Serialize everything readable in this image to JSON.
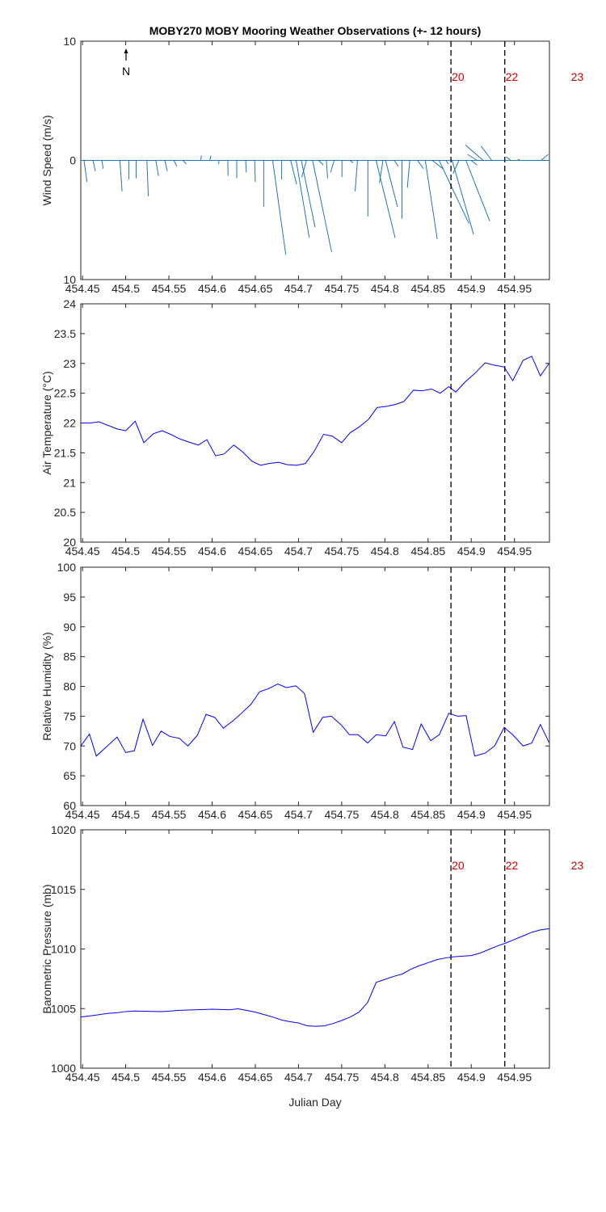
{
  "title": "MOBY270 MOBY Mooring Weather Observations (+- 12 hours)",
  "xlabel": "Julian Day",
  "north_label": "N",
  "colors": {
    "series": "#0000ff",
    "wind": "#1f77b4",
    "marker": "#000000",
    "marker_label": "#cc0000",
    "axis": "#262626"
  },
  "x_ticks": [
    454.45,
    454.5,
    454.55,
    454.6,
    454.65,
    454.7,
    454.75,
    454.8,
    454.85,
    454.9,
    454.95
  ],
  "x_tick_labels": [
    "454.45",
    "454.5",
    "454.55",
    "454.6",
    "454.65",
    "454.7",
    "454.75",
    "454.8",
    "454.85",
    "454.9",
    "454.95"
  ],
  "xlim": [
    454.448,
    454.9905
  ],
  "markers": [
    {
      "x": 454.8765,
      "label": "20"
    },
    {
      "x": 454.9388,
      "label": "22"
    },
    {
      "x": 455.0145,
      "label": "23"
    }
  ],
  "chart_data": [
    {
      "type": "quiver",
      "ylabel": "Wind Speed (m/s)",
      "ylim": [
        -10,
        10
      ],
      "y_tick_labels": [
        "10",
        "0",
        "10"
      ],
      "y_tick_values": [
        10,
        0,
        -10
      ],
      "show_markers": true,
      "vectors": [
        {
          "x": 454.4517,
          "u": 0.25,
          "v": -1.8
        },
        {
          "x": 454.4621,
          "u": 0.2,
          "v": -0.9
        },
        {
          "x": 454.4725,
          "u": 0.1,
          "v": -0.7
        },
        {
          "x": 454.4829,
          "u": 0.05,
          "v": 0.0
        },
        {
          "x": 454.4933,
          "u": 0.18,
          "v": -2.6
        },
        {
          "x": 454.5037,
          "u": 0.0,
          "v": -1.6
        },
        {
          "x": 454.5121,
          "u": 0.0,
          "v": -1.5
        },
        {
          "x": 454.5245,
          "u": 0.12,
          "v": -3.0
        },
        {
          "x": 454.5349,
          "u": 0.22,
          "v": -1.3
        },
        {
          "x": 454.5453,
          "u": 0.2,
          "v": -0.9
        },
        {
          "x": 454.5557,
          "u": 0.25,
          "v": -0.5
        },
        {
          "x": 454.5661,
          "u": 0.3,
          "v": -0.3
        },
        {
          "x": 454.5765,
          "u": 0.05,
          "v": 0.0
        },
        {
          "x": 454.5869,
          "u": 0.05,
          "v": 0.4
        },
        {
          "x": 454.5973,
          "u": 0.1,
          "v": 0.4
        },
        {
          "x": 454.6077,
          "u": 0.0,
          "v": -0.3
        },
        {
          "x": 454.6181,
          "u": 0.03,
          "v": -1.3
        },
        {
          "x": 454.6285,
          "u": 0.0,
          "v": -1.5
        },
        {
          "x": 454.6389,
          "u": 0.05,
          "v": -1.0
        },
        {
          "x": 454.6493,
          "u": 0.05,
          "v": -1.8
        },
        {
          "x": 454.6597,
          "u": 0.0,
          "v": -3.9
        },
        {
          "x": 454.6701,
          "u": 1.1,
          "v": -7.9
        },
        {
          "x": 454.6805,
          "u": 0.0,
          "v": -1.6
        },
        {
          "x": 454.6909,
          "u": 0.5,
          "v": -2.0
        },
        {
          "x": 454.6973,
          "u": 1.1,
          "v": -6.5
        },
        {
          "x": 454.7033,
          "u": 1.15,
          "v": -5.6
        },
        {
          "x": 454.7093,
          "u": -0.4,
          "v": -1.4
        },
        {
          "x": 454.7163,
          "u": 1.6,
          "v": -7.7
        },
        {
          "x": 454.7233,
          "u": 0.4,
          "v": -0.4
        },
        {
          "x": 454.7323,
          "u": 0.1,
          "v": -1.5
        },
        {
          "x": 454.7413,
          "u": -0.3,
          "v": -1.0
        },
        {
          "x": 454.7503,
          "u": 0.0,
          "v": -1.4
        },
        {
          "x": 454.7593,
          "u": 0.3,
          "v": -0.2
        },
        {
          "x": 454.7683,
          "u": -0.2,
          "v": -2.6
        },
        {
          "x": 454.7803,
          "u": 0.0,
          "v": -4.7
        },
        {
          "x": 454.7898,
          "u": 1.6,
          "v": -6.5
        },
        {
          "x": 454.7978,
          "u": -0.3,
          "v": -1.9
        },
        {
          "x": 454.8008,
          "u": 1.0,
          "v": -3.9
        },
        {
          "x": 454.8108,
          "u": 0.35,
          "v": -0.5
        },
        {
          "x": 454.8198,
          "u": 0.0,
          "v": -4.9
        },
        {
          "x": 454.8288,
          "u": -0.2,
          "v": -2.3
        },
        {
          "x": 454.8378,
          "u": 0.5,
          "v": -0.7
        },
        {
          "x": 454.8468,
          "u": 1.0,
          "v": -6.6
        },
        {
          "x": 454.8548,
          "u": 0.9,
          "v": -0.7
        },
        {
          "x": 454.8628,
          "u": 2.5,
          "v": -5.3
        },
        {
          "x": 454.8708,
          "u": 0.2,
          "v": -0.3
        },
        {
          "x": 454.8778,
          "u": 1.8,
          "v": -6.2
        },
        {
          "x": 454.8858,
          "u": -0.5,
          "v": -1.1
        },
        {
          "x": 454.8938,
          "u": 2.0,
          "v": -5.1
        },
        {
          "x": 454.8998,
          "u": 0.5,
          "v": -0.4
        },
        {
          "x": 454.9068,
          "u": -0.8,
          "v": 0.5
        },
        {
          "x": 454.9138,
          "u": -1.5,
          "v": 1.3
        },
        {
          "x": 454.9238,
          "u": -0.9,
          "v": 1.2
        },
        {
          "x": 454.9368,
          "u": 0.2,
          "v": 0.0
        },
        {
          "x": 454.9458,
          "u": -0.4,
          "v": 0.3
        },
        {
          "x": 454.9568,
          "u": -0.2,
          "v": 0.1
        },
        {
          "x": 454.9688,
          "u": 0.05,
          "v": 0.0
        },
        {
          "x": 454.9808,
          "u": 0.6,
          "v": 0.5
        }
      ]
    },
    {
      "type": "line",
      "ylabel": "Air Temperature (°C)",
      "ylim": [
        20,
        24
      ],
      "y_tick_values": [
        20,
        20.5,
        21,
        21.5,
        22,
        22.5,
        23,
        23.5,
        24
      ],
      "y_tick_labels": [
        "20",
        "20.5",
        "21",
        "21.5",
        "22",
        "22.5",
        "23",
        "23.5",
        "24"
      ],
      "show_markers": false,
      "x": [
        454.448,
        454.459,
        454.469,
        454.49,
        454.5,
        454.511,
        454.521,
        454.532,
        454.542,
        454.552,
        454.563,
        454.573,
        454.584,
        454.594,
        454.604,
        454.614,
        454.625,
        454.635,
        454.646,
        454.656,
        454.666,
        454.677,
        454.687,
        454.698,
        454.708,
        454.718,
        454.729,
        454.739,
        454.75,
        454.76,
        454.77,
        454.781,
        454.791,
        454.802,
        454.812,
        454.822,
        454.833,
        454.843,
        454.854,
        454.864,
        454.874,
        454.882,
        454.893,
        454.904,
        454.916,
        454.927,
        454.938,
        454.948,
        454.96,
        454.97,
        454.98,
        454.99
      ],
      "y": [
        22.0,
        22.0,
        22.02,
        21.9,
        21.87,
        22.03,
        21.67,
        21.82,
        21.87,
        21.81,
        21.73,
        21.68,
        21.63,
        21.72,
        21.45,
        21.48,
        21.63,
        21.52,
        21.36,
        21.29,
        21.32,
        21.34,
        21.3,
        21.29,
        21.32,
        21.52,
        21.81,
        21.78,
        21.67,
        21.84,
        21.93,
        22.06,
        22.26,
        22.28,
        22.31,
        22.36,
        22.55,
        22.54,
        22.57,
        22.5,
        22.61,
        22.52,
        22.69,
        22.83,
        23.01,
        22.97,
        22.94,
        22.71,
        23.05,
        23.12,
        22.79,
        23.0
      ]
    },
    {
      "type": "line",
      "ylabel": "Relative Humidity (%)",
      "ylim": [
        60,
        100
      ],
      "y_tick_values": [
        60,
        65,
        70,
        75,
        80,
        85,
        90,
        95,
        100
      ],
      "y_tick_labels": [
        "60",
        "65",
        "70",
        "75",
        "80",
        "85",
        "90",
        "95",
        "100"
      ],
      "show_markers": false,
      "x": [
        454.448,
        454.458,
        454.466,
        454.49,
        454.5,
        454.51,
        454.52,
        454.531,
        454.541,
        454.551,
        454.562,
        454.572,
        454.583,
        454.593,
        454.603,
        454.613,
        454.624,
        454.634,
        454.645,
        454.655,
        454.665,
        454.676,
        454.686,
        454.697,
        454.707,
        454.717,
        454.728,
        454.738,
        454.749,
        454.759,
        454.769,
        454.78,
        454.79,
        454.801,
        454.811,
        454.821,
        454.832,
        454.842,
        454.853,
        454.863,
        454.874,
        454.884,
        454.894,
        454.904,
        454.916,
        454.927,
        454.938,
        454.948,
        454.96,
        454.97,
        454.98,
        454.99
      ],
      "y": [
        70.0,
        72.0,
        68.3,
        71.5,
        68.9,
        69.2,
        74.5,
        70.1,
        72.5,
        71.6,
        71.3,
        70.0,
        71.8,
        75.3,
        74.8,
        73.0,
        74.2,
        75.5,
        77.0,
        79.1,
        79.6,
        80.4,
        79.8,
        80.1,
        78.8,
        72.3,
        74.8,
        75.0,
        73.6,
        71.9,
        71.9,
        70.5,
        71.9,
        71.7,
        74.1,
        69.8,
        69.4,
        73.7,
        70.9,
        71.9,
        75.5,
        75.0,
        75.1,
        68.3,
        68.8,
        70.0,
        73.1,
        71.9,
        70.0,
        70.5,
        73.6,
        70.6
      ]
    },
    {
      "type": "line",
      "ylabel": "Barometric Pressure (mb)",
      "ylim": [
        1000,
        1020
      ],
      "y_tick_values": [
        1000,
        1005,
        1010,
        1015,
        1020
      ],
      "y_tick_labels": [
        "1000",
        "1005",
        "1010",
        "1015",
        "1020"
      ],
      "show_markers": true,
      "x": [
        454.448,
        454.46,
        454.47,
        454.48,
        454.49,
        454.5,
        454.51,
        454.52,
        454.53,
        454.54,
        454.55,
        454.56,
        454.57,
        454.58,
        454.59,
        454.6,
        454.61,
        454.62,
        454.63,
        454.64,
        454.65,
        454.66,
        454.67,
        454.68,
        454.69,
        454.7,
        454.71,
        454.72,
        454.73,
        454.74,
        454.75,
        454.76,
        454.77,
        454.78,
        454.79,
        454.8,
        454.81,
        454.82,
        454.83,
        454.84,
        454.85,
        454.86,
        454.87,
        454.88,
        454.89,
        454.9,
        454.91,
        454.92,
        454.93,
        454.94,
        454.95,
        454.96,
        454.97,
        454.98,
        454.99
      ],
      "y": [
        1004.3,
        1004.4,
        1004.5,
        1004.6,
        1004.65,
        1004.75,
        1004.8,
        1004.78,
        1004.76,
        1004.75,
        1004.78,
        1004.85,
        1004.87,
        1004.9,
        1004.92,
        1004.95,
        1004.92,
        1004.9,
        1004.98,
        1004.85,
        1004.7,
        1004.5,
        1004.3,
        1004.05,
        1003.9,
        1003.8,
        1003.55,
        1003.52,
        1003.55,
        1003.75,
        1004.0,
        1004.3,
        1004.7,
        1005.5,
        1007.2,
        1007.45,
        1007.7,
        1007.9,
        1008.3,
        1008.6,
        1008.85,
        1009.1,
        1009.25,
        1009.35,
        1009.4,
        1009.45,
        1009.65,
        1009.95,
        1010.25,
        1010.5,
        1010.8,
        1011.1,
        1011.4,
        1011.6,
        1011.7
      ]
    }
  ]
}
